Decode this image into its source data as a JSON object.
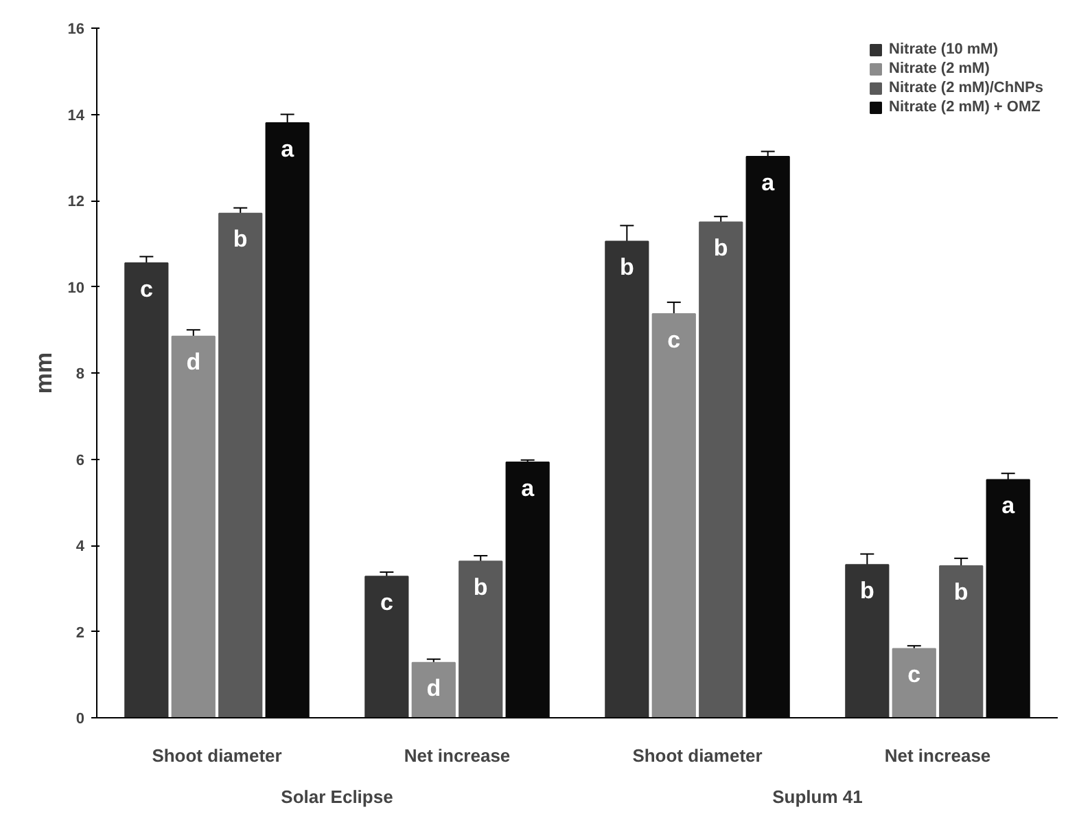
{
  "chart_data": {
    "type": "bar",
    "ylabel": "mm",
    "categories": [
      "Shoot diameter",
      "Net increase",
      "Shoot diameter",
      "Net increase"
    ],
    "annotations": [
      "Solar Eclipse",
      "Suplum 41"
    ],
    "series": [
      {
        "name": "Nitrate (10 mM)",
        "color": "#333333",
        "values": [
          10.55,
          3.28,
          11.05,
          3.55
        ],
        "errors": [
          0.15,
          0.1,
          0.37,
          0.25
        ],
        "value_labels": [
          "c",
          "c",
          "b",
          "b"
        ]
      },
      {
        "name": "Nitrate (2 mM)",
        "color": "#8c8c8c",
        "values": [
          8.85,
          1.28,
          9.37,
          1.6
        ],
        "errors": [
          0.15,
          0.08,
          0.27,
          0.07
        ],
        "value_labels": [
          "d",
          "d",
          "c",
          "c"
        ]
      },
      {
        "name": "Nitrate (2 mM)/ChNPs",
        "color": "#5a5a5a",
        "values": [
          11.7,
          3.63,
          11.5,
          3.52
        ],
        "errors": [
          0.13,
          0.13,
          0.13,
          0.18
        ],
        "value_labels": [
          "b",
          "b",
          "b",
          "b"
        ]
      },
      {
        "name": "Nitrate (2 mM) + OMZ",
        "color": "#0a0a0a",
        "values": [
          13.8,
          5.93,
          13.02,
          5.52
        ],
        "errors": [
          0.2,
          0.05,
          0.12,
          0.15
        ],
        "value_labels": [
          "a",
          "a",
          "a",
          "a"
        ]
      }
    ],
    "ylim": [
      0,
      16
    ],
    "yticks": [
      0,
      2,
      4,
      6,
      8,
      10,
      12,
      14,
      16
    ],
    "grid": false,
    "legend": "top right"
  }
}
